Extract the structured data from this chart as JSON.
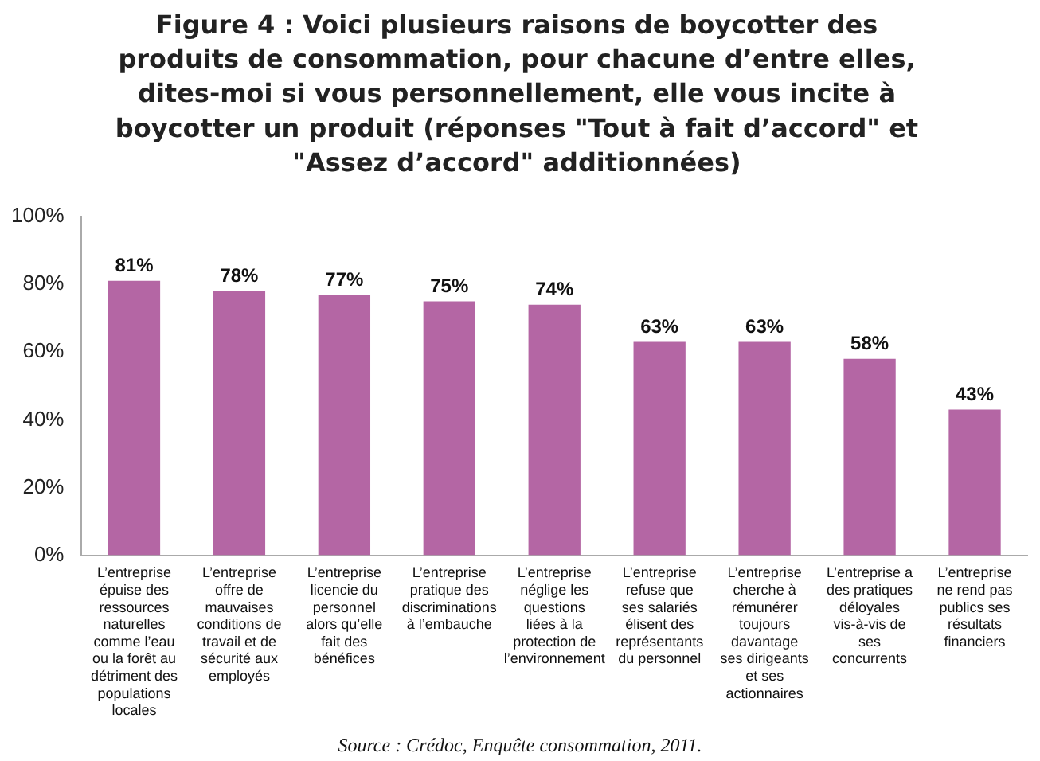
{
  "chart_data": {
    "type": "bar",
    "title": "Figure 4 : Voici plusieurs raisons de boycotter des produits de consommation, pour chacune d’entre elles, dites-moi si vous personnellement, elle vous incite à boycotter un produit (réponses \"Tout à fait d’accord\" et \"Assez d’accord\" additionnées)",
    "categories": [
      "L’entreprise épuise des ressources naturelles comme l’eau ou la forêt au détriment des populations locales",
      "L’entreprise offre de mauvaises conditions de travail et de sécurité aux employés",
      "L’entreprise licencie du personnel alors qu’elle fait des bénéfices",
      "L’entreprise pratique des discriminations à l’embauche",
      "L’entreprise néglige les questions liées à la protection de l’environnement",
      "L’entreprise refuse que ses salariés élisent des représentants du personnel",
      "L’entreprise cherche à rémunérer toujours davantage ses dirigeants et ses actionnaires",
      "L’entreprise a des pratiques déloyales vis-à-vis de ses concurrents",
      "L’entreprise ne rend pas publics ses résultats financiers"
    ],
    "values": [
      81,
      78,
      77,
      75,
      74,
      63,
      63,
      58,
      43
    ],
    "value_labels": [
      "81%",
      "78%",
      "77%",
      "75%",
      "74%",
      "63%",
      "63%",
      "58%",
      "43%"
    ],
    "color": "#b466a4",
    "ylim": [
      0,
      100
    ],
    "yticks": [
      {
        "value": 0,
        "label": "0%"
      },
      {
        "value": 20,
        "label": "20%"
      },
      {
        "value": 40,
        "label": "40%"
      },
      {
        "value": 60,
        "label": "60%"
      },
      {
        "value": 80,
        "label": "80%"
      },
      {
        "value": 100,
        "label": "100%"
      }
    ],
    "grid": false,
    "annotations": [
      "Source : Crédoc, Enquête consommation, 2011."
    ]
  }
}
